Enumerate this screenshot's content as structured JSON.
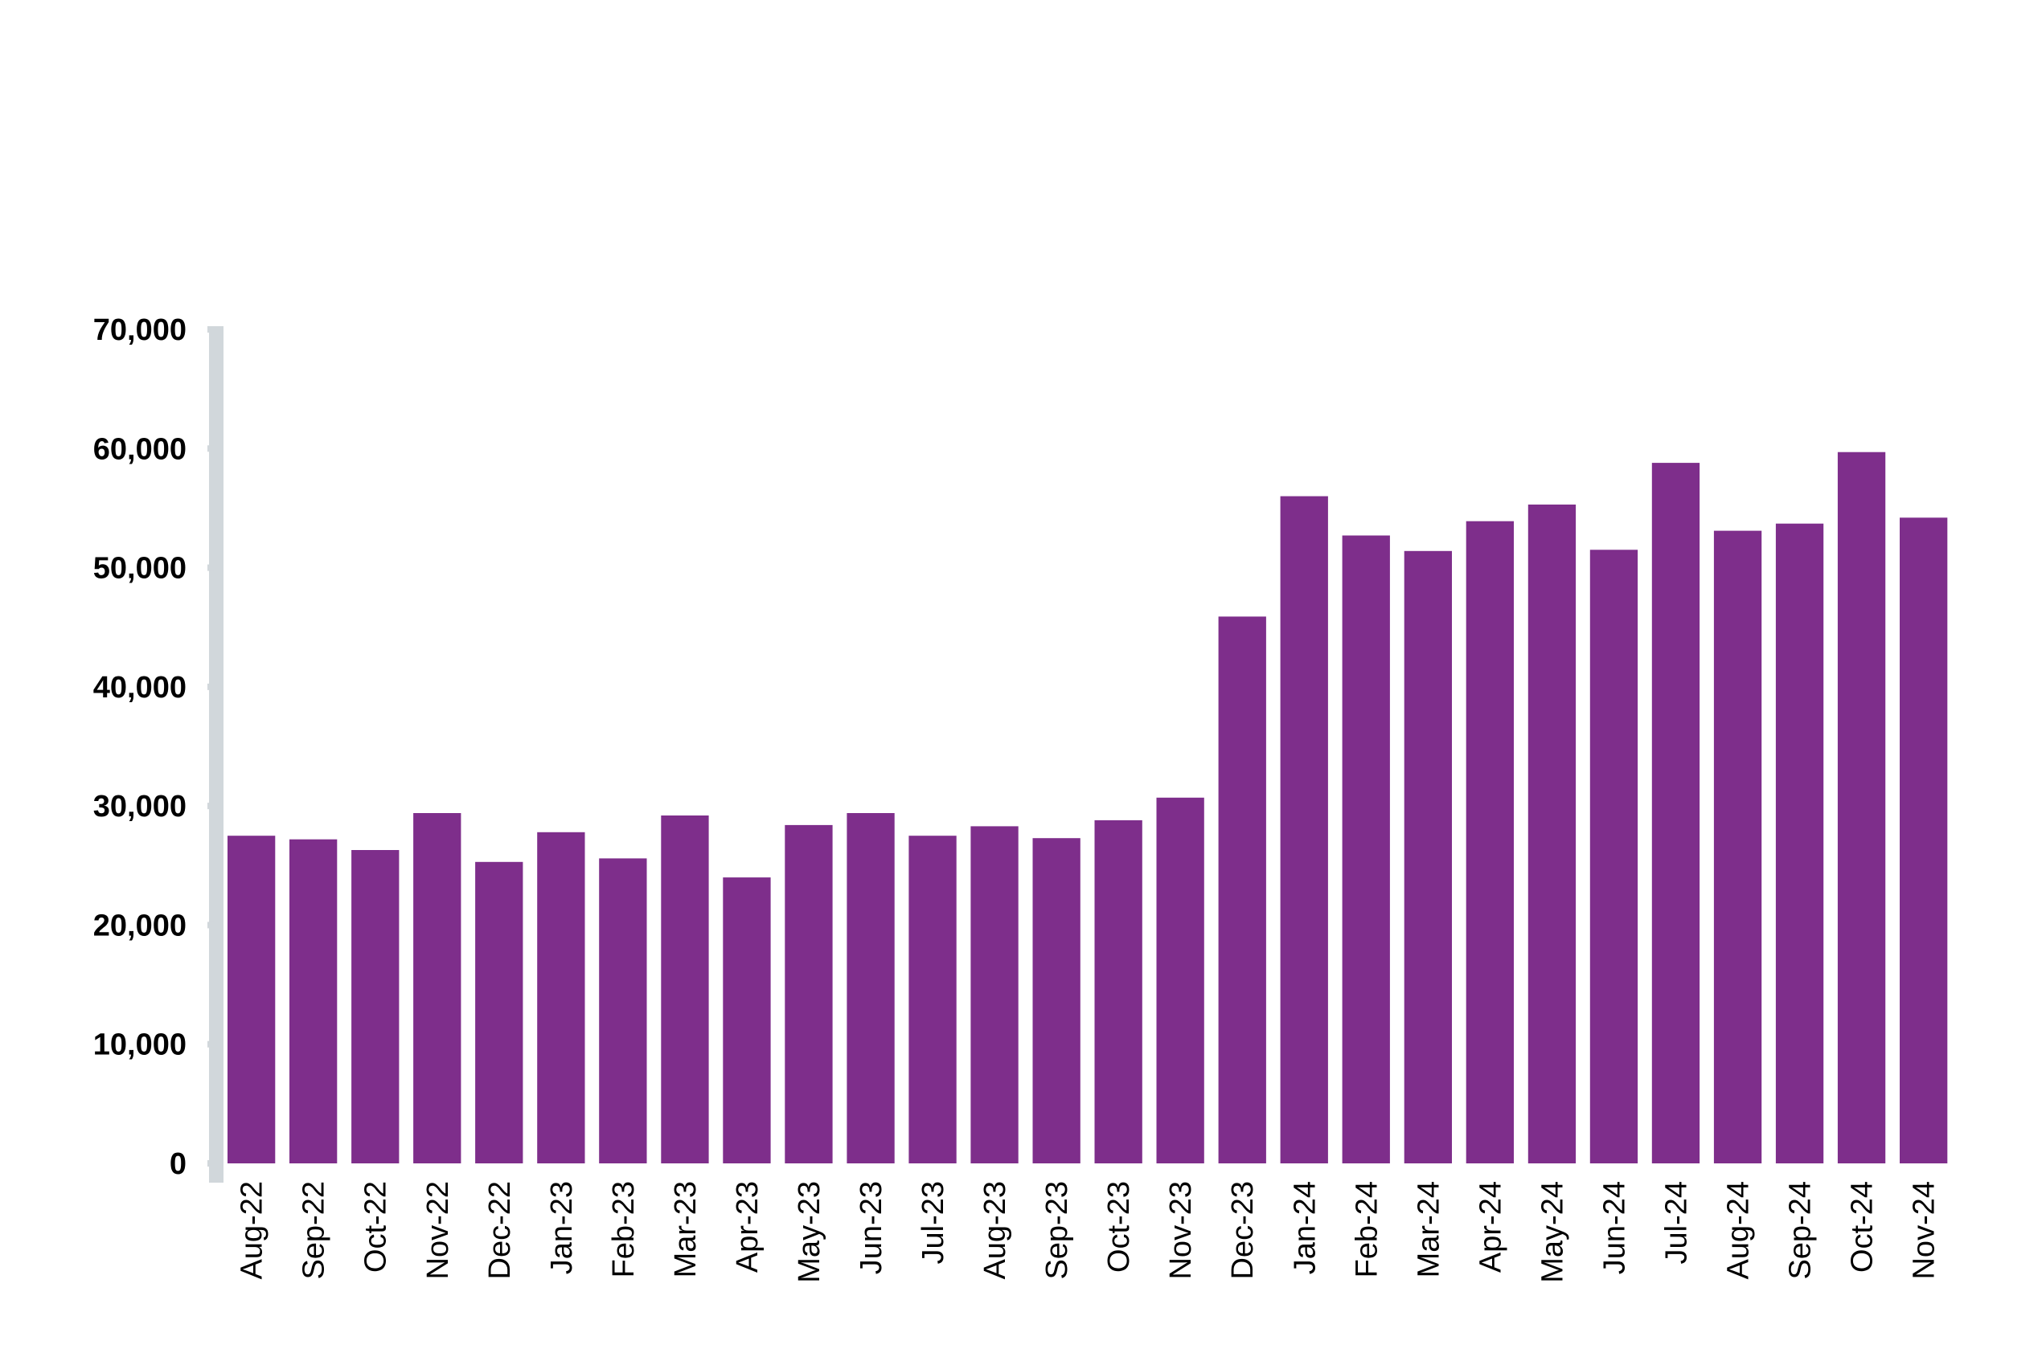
{
  "chart_data": {
    "type": "bar",
    "title": "",
    "xlabel": "",
    "ylabel": "",
    "categories": [
      "Aug-22",
      "Sep-22",
      "Oct-22",
      "Nov-22",
      "Dec-22",
      "Jan-23",
      "Feb-23",
      "Mar-23",
      "Apr-23",
      "May-23",
      "Jun-23",
      "Jul-23",
      "Aug-23",
      "Sep-23",
      "Oct-23",
      "Nov-23",
      "Dec-23",
      "Jan-24",
      "Feb-24",
      "Mar-24",
      "Apr-24",
      "May-24",
      "Jun-24",
      "Jul-24",
      "Aug-24",
      "Sep-24",
      "Oct-24",
      "Nov-24"
    ],
    "values": [
      27500,
      27200,
      26300,
      29400,
      25300,
      27800,
      25600,
      29200,
      24000,
      28400,
      29400,
      27500,
      28300,
      27300,
      28800,
      30700,
      45900,
      56000,
      52700,
      51400,
      53900,
      55300,
      51500,
      58800,
      53100,
      53700,
      59700,
      54200
    ],
    "ylim": [
      0,
      70000
    ],
    "yticks": [
      0,
      10000,
      20000,
      30000,
      40000,
      50000,
      60000,
      70000
    ],
    "ytick_labels": [
      "0",
      "10,000",
      "20,000",
      "30,000",
      "40,000",
      "50,000",
      "60,000",
      "70,000"
    ],
    "grid": false,
    "legend": "none",
    "colors": {
      "bar": "#7e2e8b",
      "axis": "#d1d7db",
      "text": "#000000"
    }
  }
}
